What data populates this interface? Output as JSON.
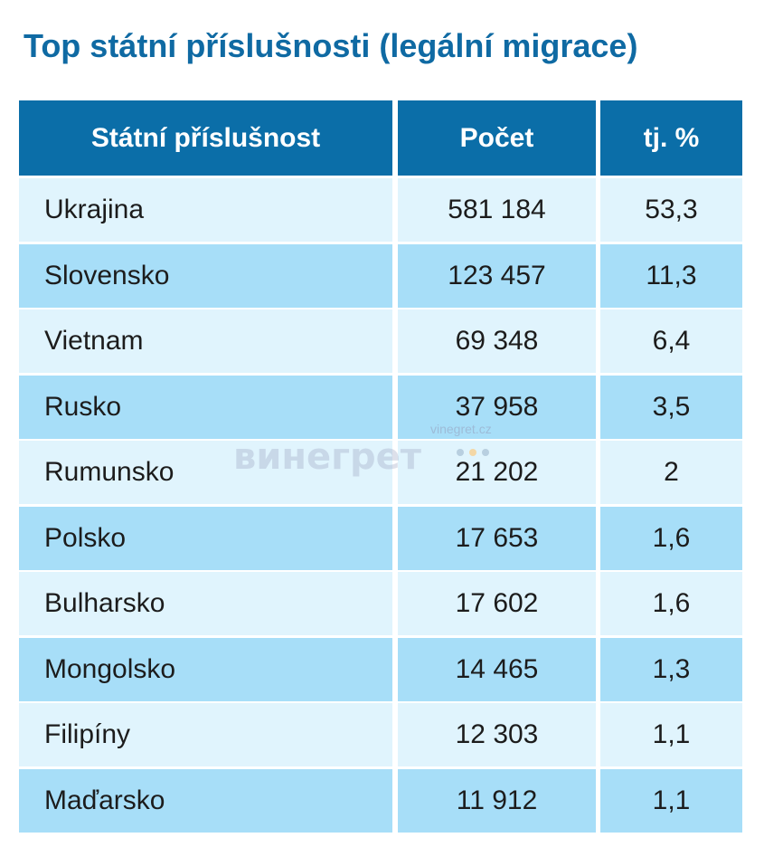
{
  "title": "Top státní příslušnosti (legální migrace)",
  "watermark": {
    "text": "винегрет",
    "url": "vinegret.cz",
    "colors": [
      "#b8cfe0",
      "#f3d7a6",
      "#b8cfe0"
    ]
  },
  "chart_data": {
    "type": "table",
    "columns": [
      "Státní příslušnost",
      "Počet",
      "tj. %"
    ],
    "rows": [
      [
        "Ukrajina",
        "581 184",
        "53,3"
      ],
      [
        "Slovensko",
        "123 457",
        "11,3"
      ],
      [
        "Vietnam",
        "69 348",
        "6,4"
      ],
      [
        "Rusko",
        "37 958",
        "3,5"
      ],
      [
        "Rumunsko",
        "21 202",
        "2"
      ],
      [
        "Polsko",
        "17 653",
        "1,6"
      ],
      [
        "Bulharsko",
        "17 602",
        "1,6"
      ],
      [
        "Mongolsko",
        "14 465",
        "1,3"
      ],
      [
        "Filipíny",
        "12 303",
        "1,1"
      ],
      [
        "Maďarsko",
        "11 912",
        "1,1"
      ]
    ]
  },
  "colors": {
    "title": "#0f6aa3",
    "header_bg": "#0b6ea8",
    "row_light": "#e0f4fd",
    "row_dark": "#a7def8"
  }
}
